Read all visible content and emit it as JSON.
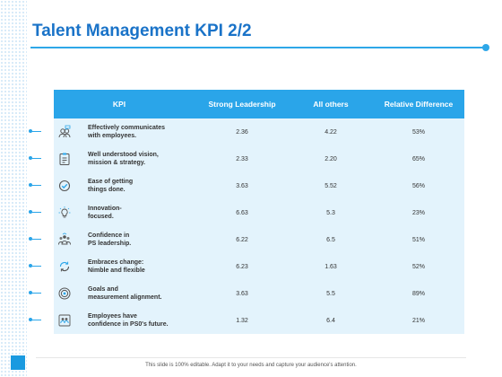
{
  "slide": {
    "title": "Talent Management KPI 2/2",
    "footer": "This slide is 100% editable. Adapt it to your needs and capture your audience's attention."
  },
  "table": {
    "headers": [
      "KPI",
      "Strong Leadership",
      "All others",
      "Relative Difference"
    ],
    "rows": [
      {
        "icon": "team-chat-icon",
        "kpi": "Effectively communicates\nwith employees.",
        "strong": "2.36",
        "others": "4.22",
        "diff": "53%"
      },
      {
        "icon": "clipboard-icon",
        "kpi": "Well understood vision,\nmission & strategy.",
        "strong": "2.33",
        "others": "2.20",
        "diff": "65%"
      },
      {
        "icon": "check-circle-icon",
        "kpi": "Ease of getting\nthings done.",
        "strong": "3.63",
        "others": "5.52",
        "diff": "56%"
      },
      {
        "icon": "lightbulb-icon",
        "kpi": "Innovation-\nfocused.",
        "strong": "6.63",
        "others": "5.3",
        "diff": "23%"
      },
      {
        "icon": "group-icon",
        "kpi": "Confidence in\nPS leadership.",
        "strong": "6.22",
        "others": "6.5",
        "diff": "51%"
      },
      {
        "icon": "refresh-icon",
        "kpi": "Embraces change:\nNimble and flexible",
        "strong": "6.23",
        "others": "1.63",
        "diff": "52%"
      },
      {
        "icon": "target-icon",
        "kpi": "Goals and\nmeasurement alignment.",
        "strong": "3.63",
        "others": "5.5",
        "diff": "89%"
      },
      {
        "icon": "employees-icon",
        "kpi": "Employees have\nconfidence in PS0's future.",
        "strong": "1.32",
        "others": "6.4",
        "diff": "21%"
      }
    ]
  },
  "colors": {
    "accent": "#2aa5e9",
    "title": "#1a73c8",
    "table_bg": "#e3f3fc"
  }
}
